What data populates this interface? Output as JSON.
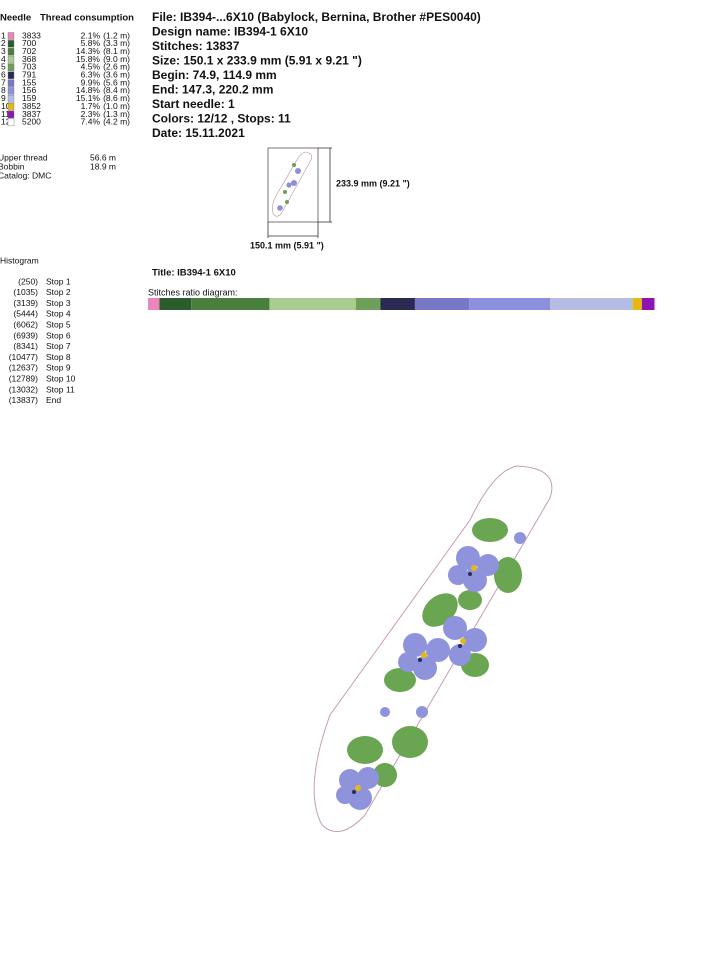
{
  "header": {
    "needle_label": "Needle",
    "thread_label": "Thread consumption"
  },
  "threads": [
    {
      "needle": "1",
      "code": "3833",
      "percent": "2.1%",
      "length": "(1.2 m)",
      "color": "#ec85b8"
    },
    {
      "needle": "2",
      "code": "700",
      "percent": "5.8%",
      "length": "(3.3 m)",
      "color": "#2a5d2e"
    },
    {
      "needle": "3",
      "code": "702",
      "percent": "14.3%",
      "length": "(8.1 m)",
      "color": "#4a7f3f"
    },
    {
      "needle": "4",
      "code": "368",
      "percent": "15.8%",
      "length": "(9.0 m)",
      "color": "#a9cc90"
    },
    {
      "needle": "5",
      "code": "703",
      "percent": "4.5%",
      "length": "(2.6 m)",
      "color": "#6c9f58"
    },
    {
      "needle": "6",
      "code": "791",
      "percent": "6.3%",
      "length": "(3.6 m)",
      "color": "#2b2a55"
    },
    {
      "needle": "7",
      "code": "155",
      "percent": "9.9%",
      "length": "(5.6 m)",
      "color": "#7a77c7"
    },
    {
      "needle": "8",
      "code": "156",
      "percent": "14.8%",
      "length": "(8.4 m)",
      "color": "#8c8fd9"
    },
    {
      "needle": "9",
      "code": "159",
      "percent": "15.1%",
      "length": "(8.6 m)",
      "color": "#b4bce5"
    },
    {
      "needle": "10",
      "code": "3852",
      "percent": "1.7%",
      "length": "(1.0 m)",
      "color": "#e5b818"
    },
    {
      "needle": "11",
      "code": "3837",
      "percent": "2.3%",
      "length": "(1.3 m)",
      "color": "#8d13b5"
    },
    {
      "needle": "12",
      "code": "5200",
      "percent": "7.4%",
      "length": "(4.2 m)",
      "color": "#ffffff"
    }
  ],
  "summary": {
    "upper_label": "Upper thread",
    "upper_value": "56.6 m",
    "bobbin_label": "Bobbin",
    "bobbin_value": "18.9 m",
    "catalog": "Catalog: DMC"
  },
  "info": [
    "File: IB394-...6X10  (Babylock, Bernina, Brother #PES0040)",
    "Design name: IB394-1 6X10",
    "Stitches: 13837",
    "Size: 150.1 x 233.9 mm (5.91 x 9.21 \")",
    "Begin: 74.9, 114.9 mm",
    "End: 147.3, 220.2 mm",
    "Start needle: 1",
    "Colors: 12/12 , Stops: 11",
    "Date: 15.11.2021"
  ],
  "preview": {
    "height_label": "233.9 mm (9.21 \")",
    "width_label": "150.1 mm (5.91 \")"
  },
  "histogram": {
    "title": "Histogram",
    "rows": [
      {
        "count": "(250)",
        "label": "Stop 1"
      },
      {
        "count": "(1035)",
        "label": "Stop 2"
      },
      {
        "count": "(3139)",
        "label": "Stop 3"
      },
      {
        "count": "(5444)",
        "label": "Stop 4"
      },
      {
        "count": "(6062)",
        "label": "Stop 5"
      },
      {
        "count": "(6939)",
        "label": "Stop 6"
      },
      {
        "count": "(8341)",
        "label": "Stop 7"
      },
      {
        "count": "(10477)",
        "label": "Stop 8"
      },
      {
        "count": "(12637)",
        "label": "Stop 9"
      },
      {
        "count": "(12789)",
        "label": "Stop 10"
      },
      {
        "count": "(13032)",
        "label": "Stop 11"
      },
      {
        "count": "(13837)",
        "label": "End"
      }
    ]
  },
  "design_title": "Title: IB394-1 6X10",
  "ratio_title": "Stitches ratio diagram:"
}
